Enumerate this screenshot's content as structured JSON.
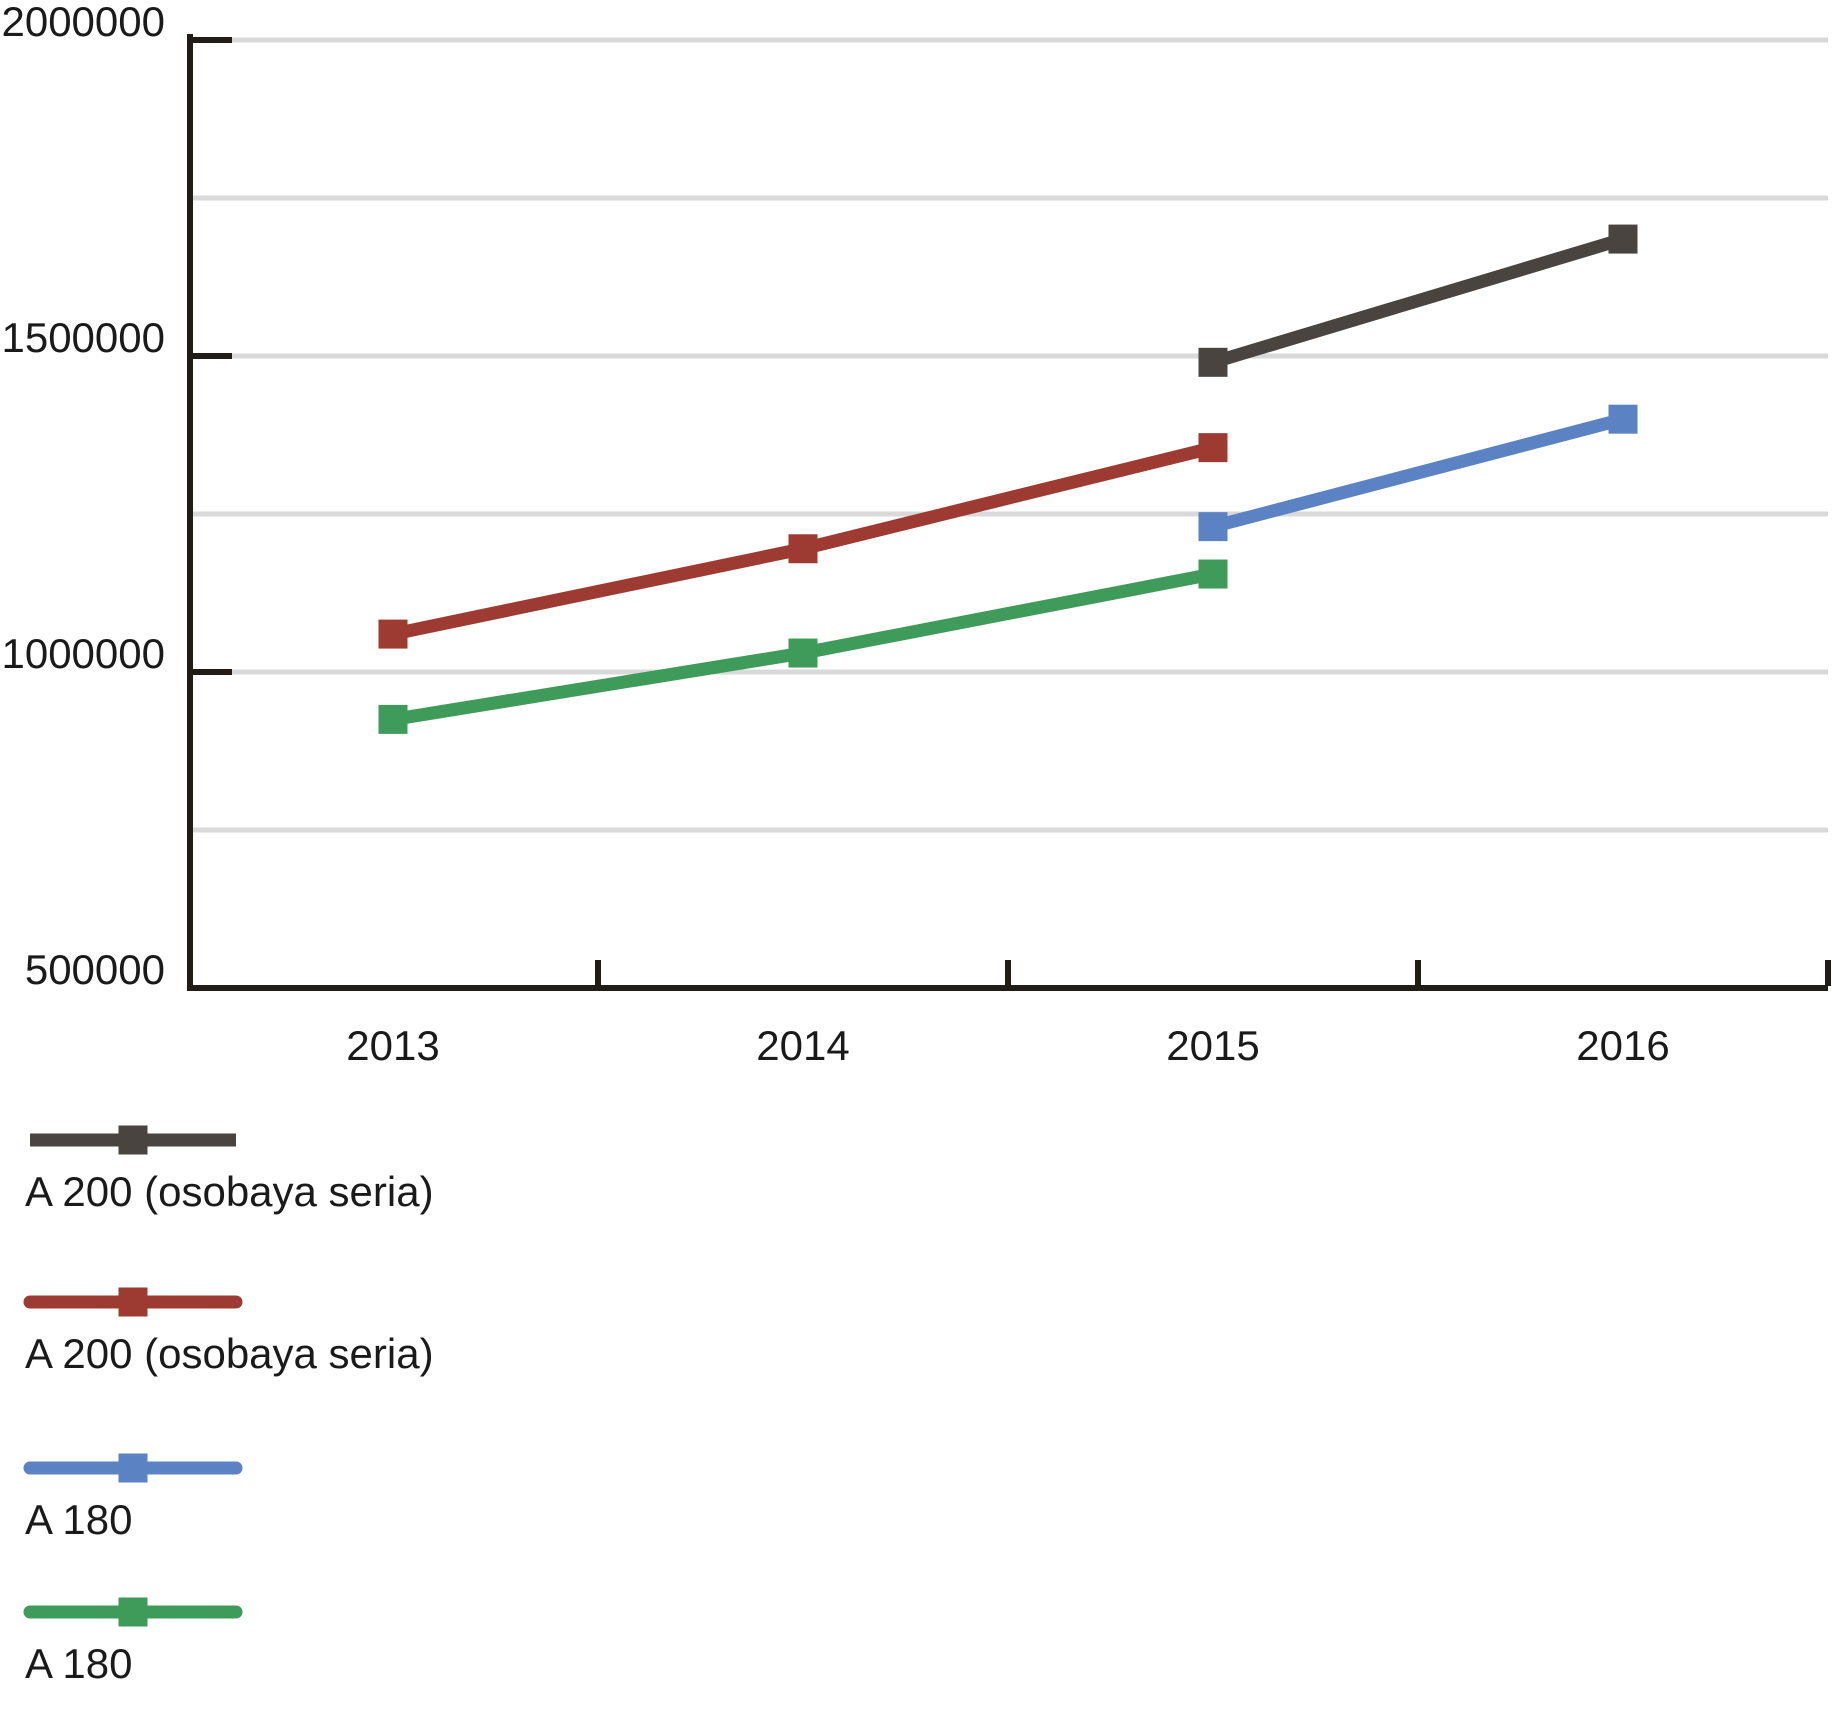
{
  "chart_data": {
    "type": "line",
    "title": "",
    "xlabel": "",
    "ylabel": "",
    "categories": [
      "2013",
      "2014",
      "2015",
      "2016"
    ],
    "series": [
      {
        "name": "A 200 (osobaya seria)",
        "color": "#494440",
        "marker": "square",
        "values": [
          null,
          null,
          1490000,
          1685000
        ]
      },
      {
        "name": "A 200 (osobaya seria)",
        "color": "#9d3b32",
        "marker": "square",
        "values": [
          1060000,
          1195000,
          1355000,
          null
        ]
      },
      {
        "name": "A 180",
        "color": "#5b82c3",
        "marker": "square",
        "values": [
          null,
          null,
          1230000,
          1400000
        ]
      },
      {
        "name": "A 180",
        "color": "#3f9b59",
        "marker": "square",
        "values": [
          925000,
          1030000,
          1155000,
          null
        ]
      }
    ],
    "ylim": [
      500000,
      2000000
    ],
    "y_tick_values": [
      2000000,
      1500000,
      1000000,
      500000
    ],
    "y_tick_labels": [
      "2000000",
      "1500000",
      "1000000",
      "500000"
    ],
    "y_gridline_step": 250000,
    "grid": true,
    "legend_position": "bottom-left"
  },
  "colors": {
    "background": "#ffffff",
    "axis": "#221c16",
    "gridline": "#d9d9d9",
    "text": "#1a1a1a"
  }
}
